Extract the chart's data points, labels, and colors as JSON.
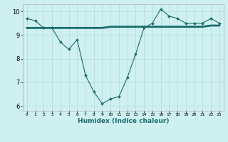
{
  "xlabel": "Humidex (Indice chaleur)",
  "ylabel": "",
  "bg_color": "#cff0f0",
  "grid_color": "#b8dede",
  "line_color": "#1a6b6b",
  "x": [
    0,
    1,
    2,
    3,
    4,
    5,
    6,
    7,
    8,
    9,
    10,
    11,
    12,
    13,
    14,
    15,
    16,
    17,
    18,
    19,
    20,
    21,
    22,
    23
  ],
  "y_zigzag": [
    9.7,
    9.6,
    9.3,
    9.3,
    8.7,
    8.4,
    8.8,
    7.3,
    6.6,
    6.1,
    6.3,
    6.4,
    7.2,
    8.2,
    9.3,
    9.5,
    10.1,
    9.8,
    9.7,
    9.5,
    9.5,
    9.5,
    9.7,
    9.5
  ],
  "y_flat": [
    9.3,
    9.3,
    9.3,
    9.3,
    9.3,
    9.3,
    9.3,
    9.3,
    9.3,
    9.3,
    9.35,
    9.35,
    9.35,
    9.35,
    9.35,
    9.35,
    9.35,
    9.35,
    9.35,
    9.35,
    9.35,
    9.35,
    9.4,
    9.4
  ],
  "ylim": [
    5.8,
    10.3
  ],
  "yticks": [
    6,
    7,
    8,
    9,
    10
  ],
  "xticks": [
    0,
    1,
    2,
    3,
    4,
    5,
    6,
    7,
    8,
    9,
    10,
    11,
    12,
    13,
    14,
    15,
    16,
    17,
    18,
    19,
    20,
    21,
    22,
    23
  ],
  "xlabel_fontsize": 6.5,
  "xlabel_fontweight": "bold",
  "ytick_fontsize": 6,
  "xtick_fontsize": 4.5
}
